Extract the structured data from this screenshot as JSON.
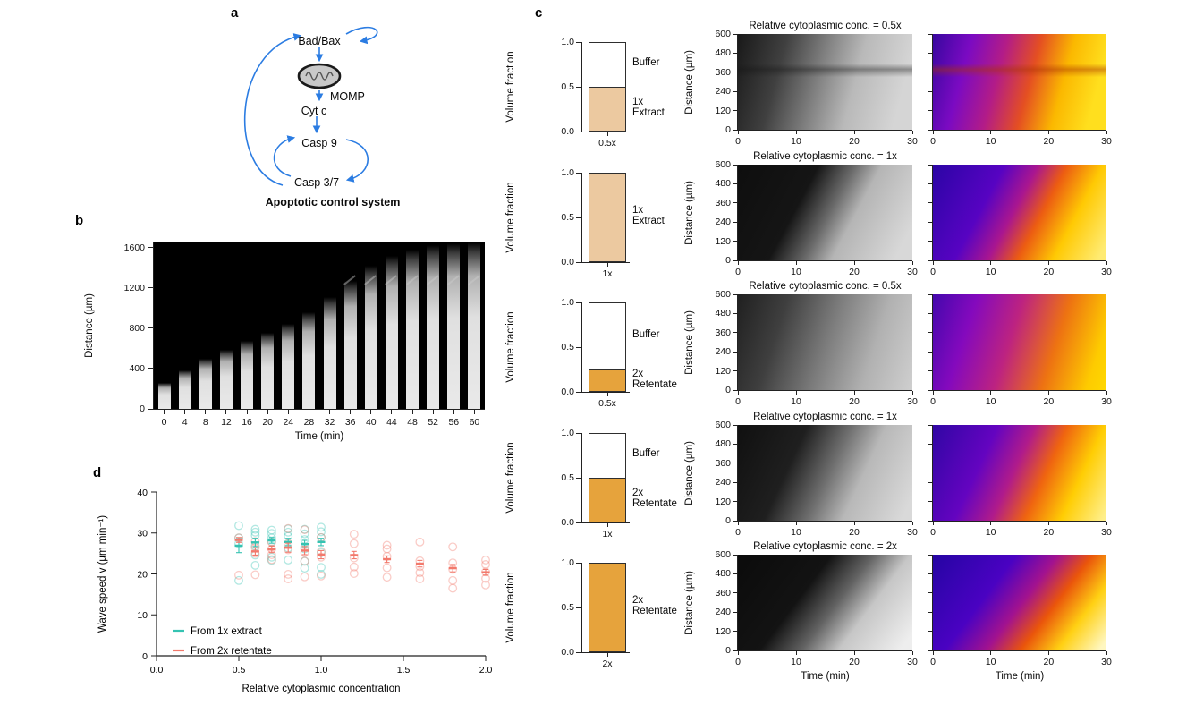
{
  "panel_letters": {
    "a": "a",
    "b": "b",
    "c": "c",
    "d": "d"
  },
  "panel_a": {
    "nodes": {
      "bad_bax": "Bad/Bax",
      "momp": "MOMP",
      "cyt_c": "Cyt c",
      "casp9": "Casp 9",
      "casp37": "Casp 3/7"
    },
    "caption": "Apoptotic control system",
    "arrow_color": "#2b7ce2",
    "mito_fill": "#c9c9c9",
    "mito_stroke": "#1a1a1a"
  },
  "panel_b": {
    "ylabel": "Distance (µm)",
    "xlabel": "Time (min)",
    "yticks": [
      0,
      400,
      800,
      1200,
      1600
    ],
    "xticks": [
      0,
      4,
      8,
      12,
      16,
      20,
      24,
      28,
      32,
      36,
      40,
      44,
      48,
      52,
      56,
      60
    ],
    "ymax": 1650,
    "front_um": [
      260,
      380,
      500,
      590,
      670,
      750,
      840,
      960,
      1110,
      1270,
      1420,
      1520,
      1580,
      1620,
      1640,
      1650
    ],
    "bg": "#000000",
    "band_color": "#e9e9e9"
  },
  "panel_c": {
    "bar_axis": {
      "ylabel": "Volume fraction",
      "yticks": [
        "1.0",
        "0.5",
        "0.0"
      ]
    },
    "heat_axis": {
      "ylabel": "Distance (µm)",
      "yticks": [
        600,
        480,
        360,
        240,
        120,
        0
      ],
      "xticks": [
        0,
        10,
        20,
        30
      ],
      "xlabel": "Time (min)"
    },
    "rows": [
      {
        "title": "Relative cytoplasmic conc. = 0.5x",
        "bar": {
          "fraction": 0.5,
          "fill": "#ecc9a0",
          "xlabel": "0.5x",
          "buffer_label": "Buffer",
          "fill_label": "1x\nExtract"
        },
        "gray_bg": "linear-gradient(to bottom, rgba(0,0,0,0) 31%, rgba(20,20,20,0.38) 37%, rgba(0,0,0,0) 45%), linear-gradient(105deg, #191919 0%, #404040 25%, #7d7d7d 45%, #b9b9b9 65%, #d5d5d5 90%)",
        "color_bg": "linear-gradient(to bottom, rgba(0,0,0,0) 31%, rgba(170,50,0,0.45) 37%, rgba(0,0,0,0) 45%), linear-gradient(105deg, #38079f 0%, #7b0ac2 20%, #b31c87 38%, #e44f22 55%, #fbb800 72%, #ffdf1e 90%)"
      },
      {
        "title": "Relative cytoplasmic conc. = 1x",
        "bar": {
          "fraction": 1,
          "fill": "#ecc9a0",
          "xlabel": "1x",
          "buffer_label": "",
          "fill_label": "1x\nExtract"
        },
        "gray_bg": "linear-gradient(118deg, #0e0e0e 0%, #151515 36%, #6a6a6a 52%, #b5b5b5 64%, #d8d8d8 92%)",
        "color_bg": "linear-gradient(118deg, #2b05a5 0%, #5703c2 32%, #a91690 47%, #ec5c12 60%, #ffc903 76%, #ffeb72 96%)"
      },
      {
        "title": "Relative cytoplasmic conc. = 0.5x",
        "bar": {
          "fraction": 0.25,
          "fill": "#e6a33c",
          "xlabel": "0.5x",
          "buffer_label": "Buffer",
          "fill_label": "2x\nRetentate"
        },
        "gray_bg": "linear-gradient(108deg, #202020 0%, #3f3f3f 25%, #7a7a7a 50%, #b1b1b1 75%, #cfcfcf 100%)",
        "color_bg": "linear-gradient(108deg, #4408ad 0%, #8409bd 22%, #bd2380 45%, #ed7212 68%, #fecb00 90%, #ffd800 100%)"
      },
      {
        "title": "Relative cytoplasmic conc. = 1x",
        "bar": {
          "fraction": 0.5,
          "fill": "#e6a33c",
          "xlabel": "1x",
          "buffer_label": "Buffer",
          "fill_label": "2x\nRetentate"
        },
        "gray_bg": "linear-gradient(115deg, #101010 0%, #1f1f1f 32%, #6f6f6f 52%, #b8b8b8 68%, #d9d9d9 95%)",
        "color_bg": "linear-gradient(115deg, #3006a4 0%, #6404c0 30%, #b01b8b 47%, #ef6410 62%, #ffcd04 79%, #ffef8a 98%)"
      },
      {
        "title": "Relative cytoplasmic conc. = 2x",
        "bar": {
          "fraction": 1,
          "fill": "#e6a33c",
          "xlabel": "2x",
          "buffer_label": "",
          "fill_label": "2x\nRetentate"
        },
        "gray_bg": "linear-gradient(127deg, #0b0b0b 0%, #131313 38%, #636363 55%, #c6c6c6 70%, #eeeeee 95%)",
        "color_bg": "linear-gradient(127deg, #2505a3 0%, #4a02c2 34%, #a2128f 51%, #ea550b 65%, #ffd013 80%, #fff7c0 97%)"
      }
    ]
  },
  "chart_data": [
    {
      "id": "panel_b_kymograph",
      "type": "heatmap",
      "xlabel": "Time (min)",
      "ylabel": "Distance (µm)",
      "xticks": [
        0,
        4,
        8,
        12,
        16,
        20,
        24,
        28,
        32,
        36,
        40,
        44,
        48,
        52,
        56,
        60
      ],
      "yticks": [
        0,
        400,
        800,
        1200,
        1600
      ],
      "ylim": [
        0,
        1650
      ],
      "wavefront_um_by_time": [
        260,
        380,
        500,
        590,
        670,
        750,
        840,
        960,
        1110,
        1270,
        1420,
        1520,
        1580,
        1620,
        1640,
        1650
      ]
    },
    {
      "id": "panel_c_volume_fractions",
      "type": "bar",
      "categories": [
        "0.5x",
        "1x",
        "0.5x",
        "1x",
        "2x"
      ],
      "values": [
        0.5,
        1.0,
        0.25,
        0.5,
        1.0
      ],
      "series_labels": [
        "1x Extract",
        "1x Extract",
        "2x Retentate",
        "2x Retentate",
        "2x Retentate"
      ],
      "ylabel": "Volume fraction",
      "ylim": [
        0,
        1
      ]
    },
    {
      "id": "panel_c_kymographs",
      "type": "heatmap",
      "titles": [
        "Relative cytoplasmic conc. = 0.5x",
        "Relative cytoplasmic conc. = 1x",
        "Relative cytoplasmic conc. = 0.5x",
        "Relative cytoplasmic conc. = 1x",
        "Relative cytoplasmic conc. = 2x"
      ],
      "xlabel": "Time (min)",
      "ylabel": "Distance (µm)",
      "xticks": [
        0,
        10,
        20,
        30
      ],
      "yticks": [
        600,
        480,
        360,
        240,
        120,
        0
      ],
      "xlim": [
        0,
        30
      ],
      "ylim": [
        0,
        600
      ]
    },
    {
      "id": "panel_d_wave_speed",
      "type": "scatter",
      "xlabel": "Relative cytoplasmic concentration",
      "ylabel": "Wave speed v (µm min⁻¹)",
      "xlim": [
        0,
        2
      ],
      "ylim": [
        0,
        40
      ],
      "xticks": [
        "0.0",
        "0.5",
        "1.0",
        "1.5",
        "2.0"
      ],
      "yticks": [
        0,
        10,
        20,
        30,
        40
      ],
      "legend_position": "inside bottom-left",
      "series": [
        {
          "name": "From 1x extract",
          "color": "#35c3b2",
          "points": [
            {
              "x": 0.5,
              "mean": 26.9,
              "err": 1.7,
              "values": [
                31.8,
                28.8,
                27.4,
                18.4
              ]
            },
            {
              "x": 0.6,
              "mean": 27.7,
              "err": 1.0,
              "values": [
                30.9,
                30.2,
                29.4,
                26.8,
                24.6,
                22.1
              ]
            },
            {
              "x": 0.7,
              "mean": 28.2,
              "err": 0.7,
              "values": [
                30.7,
                29.9,
                28.8,
                27.9,
                24.1,
                23.3
              ]
            },
            {
              "x": 0.8,
              "mean": 27.8,
              "err": 0.9,
              "values": [
                31.0,
                30.2,
                29.2,
                26.3,
                23.4
              ]
            },
            {
              "x": 0.9,
              "mean": 27.3,
              "err": 0.9,
              "values": [
                30.9,
                29.8,
                28.4,
                26.1,
                23.1,
                21.4
              ]
            },
            {
              "x": 1.0,
              "mean": 27.8,
              "err": 0.9,
              "values": [
                31.4,
                30.3,
                28.9,
                25.2,
                21.6,
                19.9
              ]
            }
          ]
        },
        {
          "name": "From 2x retentate",
          "color": "#f2796c",
          "points": [
            {
              "x": 0.5,
              "mean": 28.3,
              "err": 0.6,
              "values": [
                28.8,
                19.7
              ]
            },
            {
              "x": 0.6,
              "mean": 25.5,
              "err": 0.9,
              "values": [
                27.9,
                26.4,
                25.0,
                19.8
              ]
            },
            {
              "x": 0.7,
              "mean": 26.0,
              "err": 0.8,
              "values": [
                27.7,
                26.1,
                24.7,
                23.5
              ]
            },
            {
              "x": 0.8,
              "mean": 26.4,
              "err": 1.1,
              "values": [
                31.1,
                27.4,
                25.9,
                19.9,
                18.8
              ]
            },
            {
              "x": 0.9,
              "mean": 25.7,
              "err": 1.0,
              "values": [
                30.8,
                26.5,
                25.2,
                23.1,
                19.3
              ]
            },
            {
              "x": 1.0,
              "mean": 24.7,
              "err": 1.0,
              "values": [
                28.9,
                25.5,
                24.1,
                19.5
              ]
            },
            {
              "x": 1.2,
              "mean": 24.6,
              "err": 0.9,
              "values": [
                29.7,
                27.4,
                23.9,
                21.7,
                20.1
              ]
            },
            {
              "x": 1.4,
              "mean": 23.6,
              "err": 0.8,
              "values": [
                27.0,
                26.1,
                24.3,
                21.5,
                19.2
              ]
            },
            {
              "x": 1.6,
              "mean": 22.5,
              "err": 0.8,
              "values": [
                27.8,
                23.2,
                21.8,
                20.3,
                18.8
              ]
            },
            {
              "x": 1.8,
              "mean": 21.4,
              "err": 0.9,
              "values": [
                26.6,
                22.7,
                21.1,
                18.4,
                16.5
              ]
            },
            {
              "x": 2.0,
              "mean": 20.4,
              "err": 0.7,
              "values": [
                23.4,
                22.3,
                20.5,
                18.9,
                17.3
              ]
            }
          ]
        }
      ]
    }
  ]
}
